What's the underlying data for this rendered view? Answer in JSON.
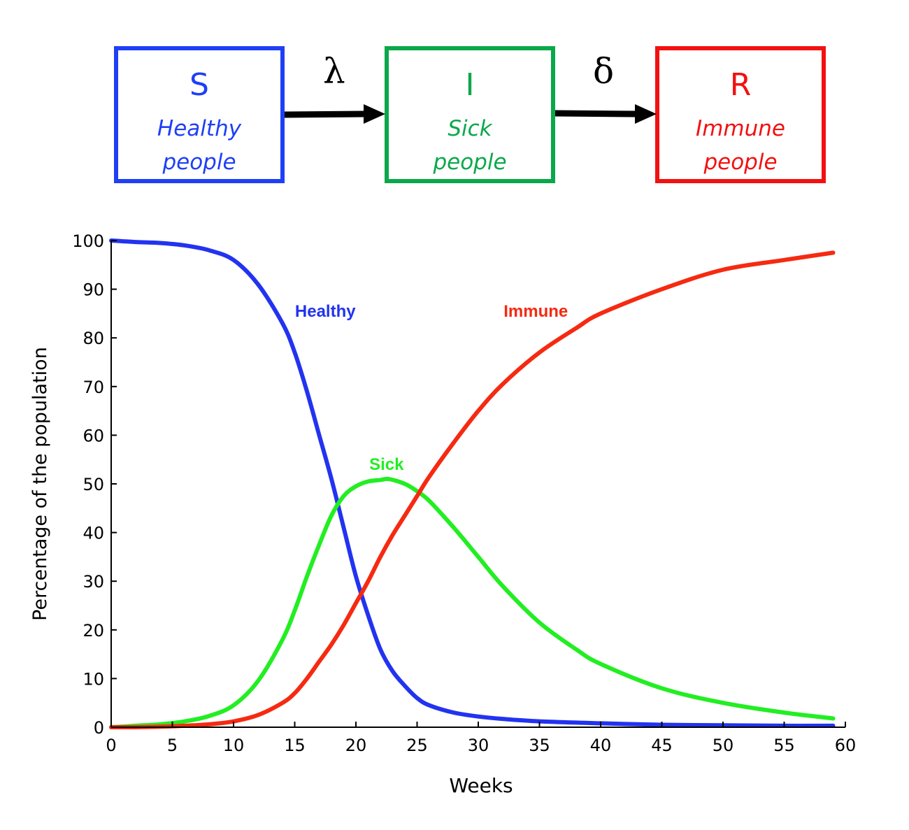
{
  "diagram": {
    "boxes": [
      {
        "letter": "S",
        "line1": "Healthy",
        "line2": "people",
        "color": "#1f3ff5"
      },
      {
        "letter": "I",
        "line1": "Sick",
        "line2": "people",
        "color": "#0aa84a"
      },
      {
        "letter": "R",
        "line1": "Immune",
        "line2": "people",
        "color": "#f21111"
      }
    ],
    "rates": {
      "s_to_i": "λ",
      "i_to_r": "δ"
    }
  },
  "chart_data": {
    "type": "line",
    "title": "",
    "xlabel": "Weeks",
    "ylabel": "Percentage of the population",
    "xlim": [
      0,
      60
    ],
    "ylim": [
      0,
      100
    ],
    "xticks": [
      0,
      5,
      10,
      15,
      20,
      25,
      30,
      35,
      40,
      45,
      50,
      55,
      60
    ],
    "yticks": [
      0,
      10,
      20,
      30,
      40,
      50,
      60,
      70,
      80,
      90,
      100
    ],
    "grid": false,
    "series": [
      {
        "name": "Healthy",
        "color": "#2233f0",
        "x": [
          0,
          2,
          4,
          6,
          8,
          10,
          12,
          14,
          15,
          16,
          17,
          18,
          19,
          20,
          21,
          22,
          23,
          24,
          25,
          26,
          28,
          30,
          32,
          35,
          40,
          45,
          50,
          55,
          59
        ],
        "y": [
          100,
          99.7,
          99.5,
          99,
          98,
          96,
          91,
          83,
          77,
          69,
          60,
          51,
          41,
          31,
          23,
          16,
          11.5,
          8.5,
          6,
          4.5,
          3,
          2.2,
          1.7,
          1.2,
          0.8,
          0.5,
          0.4,
          0.3,
          0.3
        ]
      },
      {
        "name": "Sick",
        "color": "#22ee22",
        "x": [
          0,
          2,
          4,
          6,
          8,
          10,
          12,
          14,
          15,
          16,
          17,
          18,
          19,
          20,
          21,
          22,
          22.7,
          24,
          25,
          26,
          28,
          30,
          32,
          35,
          38,
          40,
          45,
          50,
          55,
          59
        ],
        "y": [
          0,
          0.3,
          0.6,
          1.2,
          2.3,
          4.5,
          9.5,
          18,
          24,
          31,
          37.5,
          43.5,
          47.5,
          49.5,
          50.5,
          50.8,
          51,
          50,
          48.5,
          46.5,
          41,
          35,
          29,
          21.5,
          16,
          13,
          8,
          5,
          3,
          1.8
        ]
      },
      {
        "name": "Immune",
        "color": "#f52a11",
        "x": [
          0,
          2,
          4,
          6,
          8,
          10,
          12,
          14,
          15,
          16,
          17,
          18,
          19,
          20,
          21,
          22,
          23,
          24,
          25,
          26,
          28,
          30,
          32,
          35,
          38,
          40,
          45,
          50,
          55,
          59
        ],
        "y": [
          0,
          0,
          0.1,
          0.3,
          0.6,
          1.2,
          2.5,
          5,
          7,
          10,
          13.5,
          17,
          21,
          25.5,
          30,
          35,
          39.5,
          43.5,
          47.5,
          51.5,
          58.5,
          65,
          70.5,
          77,
          82,
          85,
          90,
          94,
          96,
          97.5
        ]
      }
    ],
    "annotations": [
      {
        "text": "Healthy",
        "x": 17.5,
        "y": 85.5,
        "color": "#2233f0"
      },
      {
        "text": "Immune",
        "x": 34.7,
        "y": 85.5,
        "color": "#f52a11"
      },
      {
        "text": "Sick",
        "x": 22.5,
        "y": 54,
        "color": "#22ee22"
      }
    ]
  }
}
